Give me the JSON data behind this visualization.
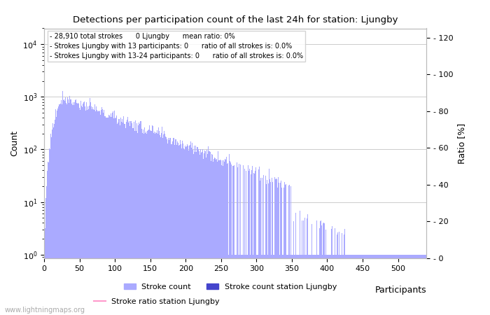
{
  "title": "Detections per participation count of the last 24h for station: Ljungby",
  "ylabel_left": "Count",
  "ylabel_right": "Ratio [%]",
  "annotation_lines": [
    "28,910 total strokes      0 Ljungby      mean ratio: 0%",
    "Strokes Ljungby with 13 participants: 0      ratio of all strokes is: 0.0%",
    "Strokes Ljungby with 13-24 participants: 0      ratio of all strokes is: 0.0%"
  ],
  "watermark": "www.lightningmaps.org",
  "bar_color_light": "#aaaaff",
  "bar_color_dark": "#4444cc",
  "ratio_line_color": "#ff99cc",
  "ylim_right": [
    0,
    125
  ],
  "xlim": [
    0,
    540
  ],
  "grid_color": "#cccccc",
  "legend_labels": [
    "Stroke count",
    "Stroke count station Ljungby",
    "Stroke ratio station Ljungby"
  ],
  "xlabel_participants": "Participants"
}
